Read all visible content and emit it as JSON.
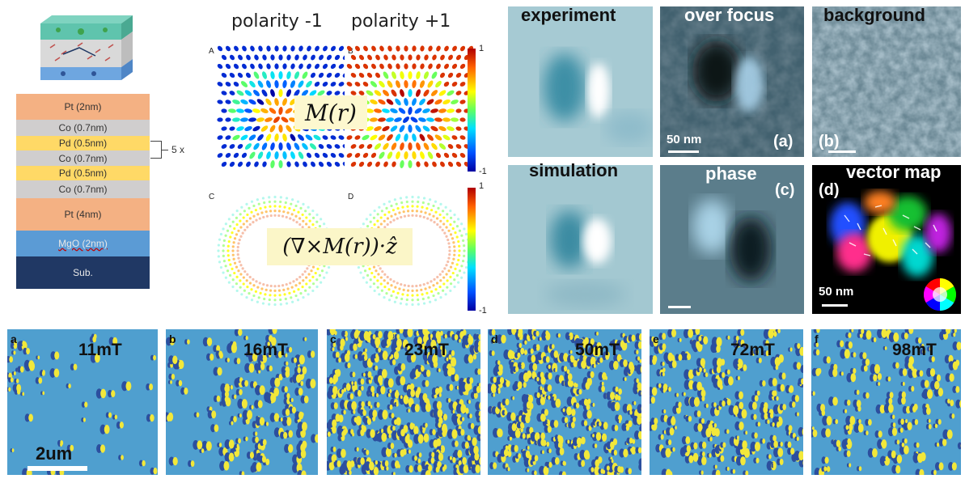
{
  "stack": {
    "layers": [
      {
        "label": "Pt (2nm)",
        "color": "#f4b183"
      },
      {
        "label": "Co (0.7nm)",
        "color": "#d0cece"
      },
      {
        "label": "Pd (0.5nm)",
        "color": "#ffd966"
      },
      {
        "label": "Co (0.7nm)",
        "color": "#d0cece"
      },
      {
        "label": "Pd (0.5nm)",
        "color": "#ffd966"
      },
      {
        "label": "Co (0.7nm)",
        "color": "#d0cece"
      },
      {
        "label": "Pt (4nm)",
        "color": "#f4b183"
      },
      {
        "label": "MgO (2nm)",
        "color": "#5b9bd5"
      },
      {
        "label": "Sub.",
        "color": "#203864"
      }
    ],
    "repeat_label": "5 x"
  },
  "spin_panels": {
    "polarity_neg_title": "polarity -1",
    "polarity_pos_title": "polarity +1",
    "letters": {
      "a": "A",
      "b": "B",
      "c": "C",
      "d": "D"
    },
    "magnetization_eq": "M(r)",
    "curl_eq": "(∇×M(r))·ẑ",
    "colorbar_top": {
      "max": "1",
      "min": "-1"
    },
    "colorbar_bottom": {
      "max": "1",
      "min": "-1"
    }
  },
  "tem": {
    "experiment_title": "experiment",
    "over_focus_title": "over focus",
    "background_title": "background",
    "simulation_title": "simulation",
    "phase_title": "phase",
    "vector_map_title": "vector map",
    "tag_a": "(a)",
    "tag_b": "(b)",
    "tag_c": "(c)",
    "tag_d": "(d)",
    "scale_top": "50 nm",
    "scale_vector": "50 nm"
  },
  "mfm": {
    "panels": [
      {
        "letter": "a",
        "field": "11mT"
      },
      {
        "letter": "b",
        "field": "16mT"
      },
      {
        "letter": "c",
        "field": "23mT"
      },
      {
        "letter": "d",
        "field": "50mT"
      },
      {
        "letter": "e",
        "field": "72mT"
      },
      {
        "letter": "f",
        "field": "98mT"
      }
    ],
    "scale_label": "2um"
  },
  "colors": {
    "mfm_base": "#4f9fcf",
    "mfm_dark": "#2c4f9e",
    "mfm_bright": "#f2e83a",
    "tem_light": "#b7d6dd",
    "tem_dark": "#1f2b33"
  }
}
